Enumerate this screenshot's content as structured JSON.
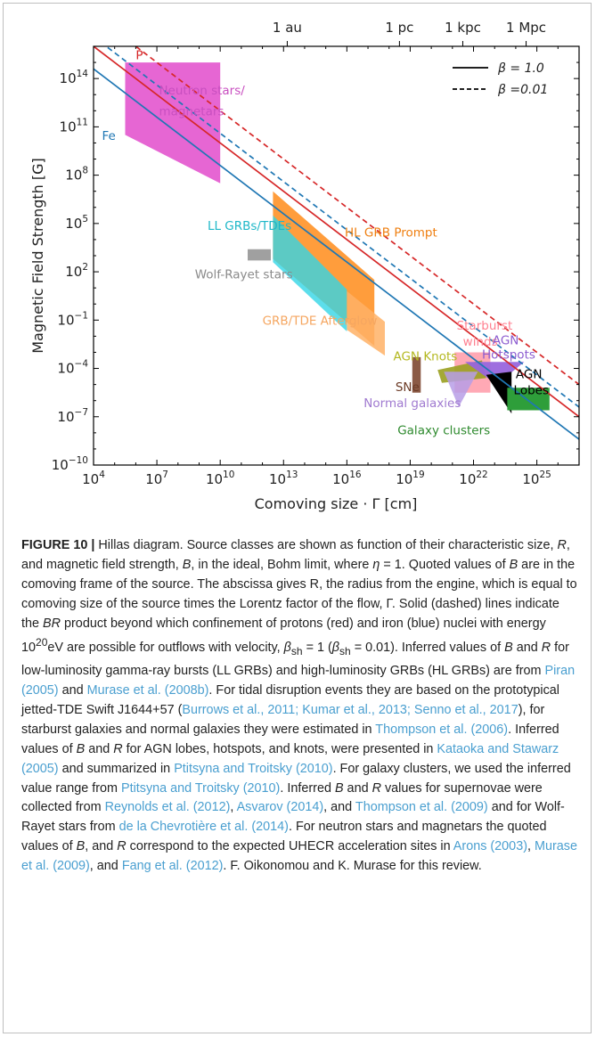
{
  "chart_data": {
    "type": "area",
    "top_axis_labels": [
      "1 au",
      "1 pc",
      "1 kpc",
      "1 Mpc"
    ],
    "top_axis_values": [
      15000000000000.0,
      3.1e+18,
      3.1e+21,
      3.1e+24
    ],
    "xlabel": "Comoving size · Γ [cm]",
    "ylabel": "Magnetic Field Strength [G]",
    "xscale": "log",
    "yscale": "log",
    "xlim_exp": [
      4,
      27
    ],
    "ylim_exp": [
      -10,
      16
    ],
    "x_tick_labels": [
      {
        "base": "10",
        "exp": "4",
        "e": 4
      },
      {
        "base": "10",
        "exp": "7",
        "e": 7
      },
      {
        "base": "10",
        "exp": "10",
        "e": 10
      },
      {
        "base": "10",
        "exp": "13",
        "e": 13
      },
      {
        "base": "10",
        "exp": "16",
        "e": 16
      },
      {
        "base": "10",
        "exp": "19",
        "e": 19
      },
      {
        "base": "10",
        "exp": "22",
        "e": 22
      },
      {
        "base": "10",
        "exp": "25",
        "e": 25
      }
    ],
    "y_tick_labels": [
      {
        "base": "10",
        "exp": "−10",
        "e": -10
      },
      {
        "base": "10",
        "exp": "−7",
        "e": -7
      },
      {
        "base": "10",
        "exp": "−4",
        "e": -4
      },
      {
        "base": "10",
        "exp": "−1",
        "e": -1
      },
      {
        "base": "10",
        "exp": "2",
        "e": 2
      },
      {
        "base": "10",
        "exp": "5",
        "e": 5
      },
      {
        "base": "10",
        "exp": "8",
        "e": 8
      },
      {
        "base": "10",
        "exp": "11",
        "e": 11
      },
      {
        "base": "10",
        "exp": "14",
        "e": 14
      }
    ],
    "legend": {
      "position": "top-right",
      "entries": [
        {
          "label": "β = 1.0",
          "style": "solid"
        },
        {
          "label": "β =0.01",
          "style": "dashed"
        }
      ]
    },
    "lines": [
      {
        "label": "P",
        "color": "#d62728",
        "style": "solid",
        "logBR": 20.0
      },
      {
        "label": "P",
        "color": "#d62728",
        "style": "dashed",
        "logBR": 22.0
      },
      {
        "label": "Fe",
        "color": "#1f77b4",
        "style": "solid",
        "logBR": 18.6
      },
      {
        "label": "Fe",
        "color": "#1f77b4",
        "style": "dashed",
        "logBR": 20.6
      }
    ],
    "regions": [
      {
        "name": "Neutron stars/ magnetars",
        "color": "#e040c8",
        "opacity": 0.8,
        "poly": [
          [
            5.5,
            15
          ],
          [
            10,
            15
          ],
          [
            10,
            7.5
          ],
          [
            5.5,
            10.5
          ]
        ]
      },
      {
        "name": "HL GRB Prompt",
        "color": "#ff8c1a",
        "opacity": 0.85,
        "poly": [
          [
            12.5,
            7
          ],
          [
            17.3,
            1.5
          ],
          [
            17.3,
            -2.6
          ],
          [
            12.5,
            2.8
          ]
        ]
      },
      {
        "name": "GRB/TDE Afterglow",
        "color": "#ffb266",
        "opacity": 0.85,
        "poly": [
          [
            16,
            0.8
          ],
          [
            17.8,
            -1.1
          ],
          [
            17.8,
            -3.2
          ],
          [
            16,
            -1.6
          ]
        ]
      },
      {
        "name": "LL GRBs/TDEs",
        "color": "#33d6e6",
        "opacity": 0.8,
        "poly": [
          [
            12.5,
            5.5
          ],
          [
            16,
            0.9
          ],
          [
            16,
            -1.7
          ],
          [
            12.5,
            2.6
          ]
        ]
      },
      {
        "name": "Wolf-Rayet stars",
        "color": "#a0a0a0",
        "opacity": 1,
        "poly": [
          [
            11.3,
            3.4
          ],
          [
            12.4,
            3.4
          ],
          [
            12.4,
            2.7
          ],
          [
            11.3,
            2.7
          ]
        ]
      },
      {
        "name": "Starburst winds",
        "color": "#ff9aa8",
        "opacity": 0.85,
        "poly": [
          [
            21.1,
            -3.0
          ],
          [
            22.8,
            -3.0
          ],
          [
            22.8,
            -5.5
          ],
          [
            21.1,
            -5.5
          ]
        ]
      },
      {
        "name": "AGN Knots",
        "color": "#9aa020",
        "opacity": 0.9,
        "poly": [
          [
            20.3,
            -4.1
          ],
          [
            22.4,
            -3.5
          ],
          [
            22.6,
            -4.6
          ],
          [
            20.5,
            -4.9
          ]
        ]
      },
      {
        "name": "Normal galaxies",
        "color": "#b79de6",
        "opacity": 0.85,
        "poly": [
          [
            20.6,
            -4.2
          ],
          [
            22.2,
            -4.2
          ],
          [
            21.3,
            -6.4
          ]
        ]
      },
      {
        "name": "SNe",
        "color": "#8b5a45",
        "opacity": 1,
        "poly": [
          [
            19.1,
            -3.3
          ],
          [
            19.5,
            -3.3
          ],
          [
            19.5,
            -5.5
          ],
          [
            19.1,
            -5.5
          ]
        ]
      },
      {
        "name": "AGN Hotspots",
        "color": "#9966dd",
        "opacity": 0.95,
        "poly": [
          [
            21.6,
            -3.6
          ],
          [
            24.4,
            -3.6
          ],
          [
            23.1,
            -5.0
          ]
        ]
      },
      {
        "name": "AGN Lobes",
        "color": "#000000",
        "opacity": 1,
        "poly": [
          [
            22.6,
            -4.4
          ],
          [
            23.8,
            -4.2
          ],
          [
            23.8,
            -6.8
          ],
          [
            22.9,
            -5.0
          ]
        ]
      },
      {
        "name": "Galaxy clusters",
        "color": "#2e9e3a",
        "opacity": 1,
        "poly": [
          [
            23.6,
            -5.2
          ],
          [
            25.6,
            -5.2
          ],
          [
            25.6,
            -6.6
          ],
          [
            23.6,
            -6.6
          ]
        ]
      }
    ],
    "annotations": [
      {
        "text": "P",
        "color": "#d62728",
        "x": 6.0,
        "y": 15.2
      },
      {
        "text": "Fe",
        "color": "#1f77b4",
        "x": 4.4,
        "y": 10.2
      },
      {
        "text": "Neutron stars/",
        "color": "#c84fc0",
        "x": 7.1,
        "y": 13.0
      },
      {
        "text": "magnetars",
        "color": "#c84fc0",
        "x": 7.1,
        "y": 11.7
      },
      {
        "text": "HL GRB Prompt",
        "color": "#ef7f10",
        "x": 15.9,
        "y": 4.2
      },
      {
        "text": "LL GRBs/TDEs",
        "color": "#1fb8c8",
        "x": 9.4,
        "y": 4.6
      },
      {
        "text": "Wolf-Rayet stars",
        "color": "#8a8a8a",
        "x": 8.8,
        "y": 1.6
      },
      {
        "text": "GRB/TDE Afterglow",
        "color": "#f5a660",
        "x": 12.0,
        "y": -1.3
      },
      {
        "text": "Starburst",
        "color": "#ff8090",
        "x": 21.2,
        "y": -1.6
      },
      {
        "text": "winds",
        "color": "#ff8090",
        "x": 21.5,
        "y": -2.6
      },
      {
        "text": "AGN Knots",
        "color": "#b4b820",
        "x": 18.2,
        "y": -3.5
      },
      {
        "text": "AGN",
        "color": "#8c5cd0",
        "x": 22.9,
        "y": -2.5
      },
      {
        "text": "Hotspots",
        "color": "#8c5cd0",
        "x": 22.4,
        "y": -3.4
      },
      {
        "text": "AGN",
        "color": "#000000",
        "x": 24.0,
        "y": -4.6
      },
      {
        "text": "Lobes",
        "color": "#000000",
        "x": 23.9,
        "y": -5.6
      },
      {
        "text": "SNe",
        "color": "#6b3a25",
        "x": 18.3,
        "y": -5.4
      },
      {
        "text": "Normal galaxies",
        "color": "#a07ad0",
        "x": 16.8,
        "y": -6.4
      },
      {
        "text": "Galaxy clusters",
        "color": "#2e8a2e",
        "x": 18.4,
        "y": -8.1
      }
    ]
  },
  "caption": {
    "figure_label": "FIGURE 10 |",
    "segments": [
      {
        "t": "text",
        "v": " Hillas diagram. Source classes are shown as function of their characteristic size, "
      },
      {
        "t": "em",
        "v": "R"
      },
      {
        "t": "text",
        "v": ", and magnetic field strength, "
      },
      {
        "t": "em",
        "v": "B"
      },
      {
        "t": "text",
        "v": ", in the ideal, Bohm limit, where "
      },
      {
        "t": "em",
        "v": "η"
      },
      {
        "t": "text",
        "v": " = 1. Quoted values of "
      },
      {
        "t": "em",
        "v": "B"
      },
      {
        "t": "text",
        "v": " are in the comoving frame of the source. The abscissa gives R, the radius from the engine, which is equal to comoving size of the source times the Lorentz factor of the flow, Γ. Solid (dashed) lines indicate the "
      },
      {
        "t": "em",
        "v": "BR"
      },
      {
        "t": "text",
        "v": " product beyond which confinement of protons (red) and iron (blue) nuclei with energy 10"
      },
      {
        "t": "sup",
        "v": "20"
      },
      {
        "t": "text",
        "v": "eV are possible for outflows with velocity, "
      },
      {
        "t": "em",
        "v": "β"
      },
      {
        "t": "sub",
        "v": "sh"
      },
      {
        "t": "text",
        "v": " = 1 ("
      },
      {
        "t": "em",
        "v": "β"
      },
      {
        "t": "sub",
        "v": "sh"
      },
      {
        "t": "text",
        "v": " = 0.01). Inferred values of "
      },
      {
        "t": "em",
        "v": "B"
      },
      {
        "t": "text",
        "v": " and "
      },
      {
        "t": "em",
        "v": "R"
      },
      {
        "t": "text",
        "v": " for low-luminosity gamma-ray bursts (LL GRBs) and high-luminosity GRBs (HL GRBs) are from "
      },
      {
        "t": "ref",
        "v": "Piran (2005)"
      },
      {
        "t": "text",
        "v": " and "
      },
      {
        "t": "ref",
        "v": "Murase et al. (2008b)"
      },
      {
        "t": "text",
        "v": ". For tidal disruption events they are based on the prototypical jetted-TDE Swift J1644+57 ("
      },
      {
        "t": "ref",
        "v": "Burrows et al., 2011; Kumar et al., 2013; Senno et al., 2017"
      },
      {
        "t": "text",
        "v": "), for starburst galaxies and normal galaxies they were estimated in "
      },
      {
        "t": "ref",
        "v": "Thompson et al. (2006)"
      },
      {
        "t": "text",
        "v": ". Inferred values of "
      },
      {
        "t": "em",
        "v": "B"
      },
      {
        "t": "text",
        "v": " and "
      },
      {
        "t": "em",
        "v": "R"
      },
      {
        "t": "text",
        "v": " for AGN lobes, hotspots, and knots, were presented in "
      },
      {
        "t": "ref",
        "v": "Kataoka and Stawarz (2005)"
      },
      {
        "t": "text",
        "v": " and summarized in "
      },
      {
        "t": "ref",
        "v": "Ptitsyna and Troitsky (2010)"
      },
      {
        "t": "text",
        "v": ". For galaxy clusters, we used the inferred value range from "
      },
      {
        "t": "ref",
        "v": "Ptitsyna and Troitsky (2010)"
      },
      {
        "t": "text",
        "v": ". Inferred "
      },
      {
        "t": "em",
        "v": "B"
      },
      {
        "t": "text",
        "v": " and "
      },
      {
        "t": "em",
        "v": "R"
      },
      {
        "t": "text",
        "v": " values for supernovae were collected from "
      },
      {
        "t": "ref",
        "v": "Reynolds et al. (2012)"
      },
      {
        "t": "text",
        "v": ", "
      },
      {
        "t": "ref",
        "v": "Asvarov (2014)"
      },
      {
        "t": "text",
        "v": ", and "
      },
      {
        "t": "ref",
        "v": "Thompson et al. (2009)"
      },
      {
        "t": "text",
        "v": " and for Wolf-Rayet stars from "
      },
      {
        "t": "ref",
        "v": "de la Chevrotière et al. (2014)"
      },
      {
        "t": "text",
        "v": ". For neutron stars and magnetars the quoted values of "
      },
      {
        "t": "em",
        "v": "B"
      },
      {
        "t": "text",
        "v": ", and "
      },
      {
        "t": "em",
        "v": "R"
      },
      {
        "t": "text",
        "v": " correspond to the expected UHECR acceleration sites in "
      },
      {
        "t": "ref",
        "v": "Arons (2003)"
      },
      {
        "t": "text",
        "v": ", "
      },
      {
        "t": "ref",
        "v": "Murase et al. (2009)"
      },
      {
        "t": "text",
        "v": ", and "
      },
      {
        "t": "ref",
        "v": "Fang et al. (2012)"
      },
      {
        "t": "text",
        "v": ". F. Oikonomou and K. Murase for this review."
      }
    ]
  }
}
